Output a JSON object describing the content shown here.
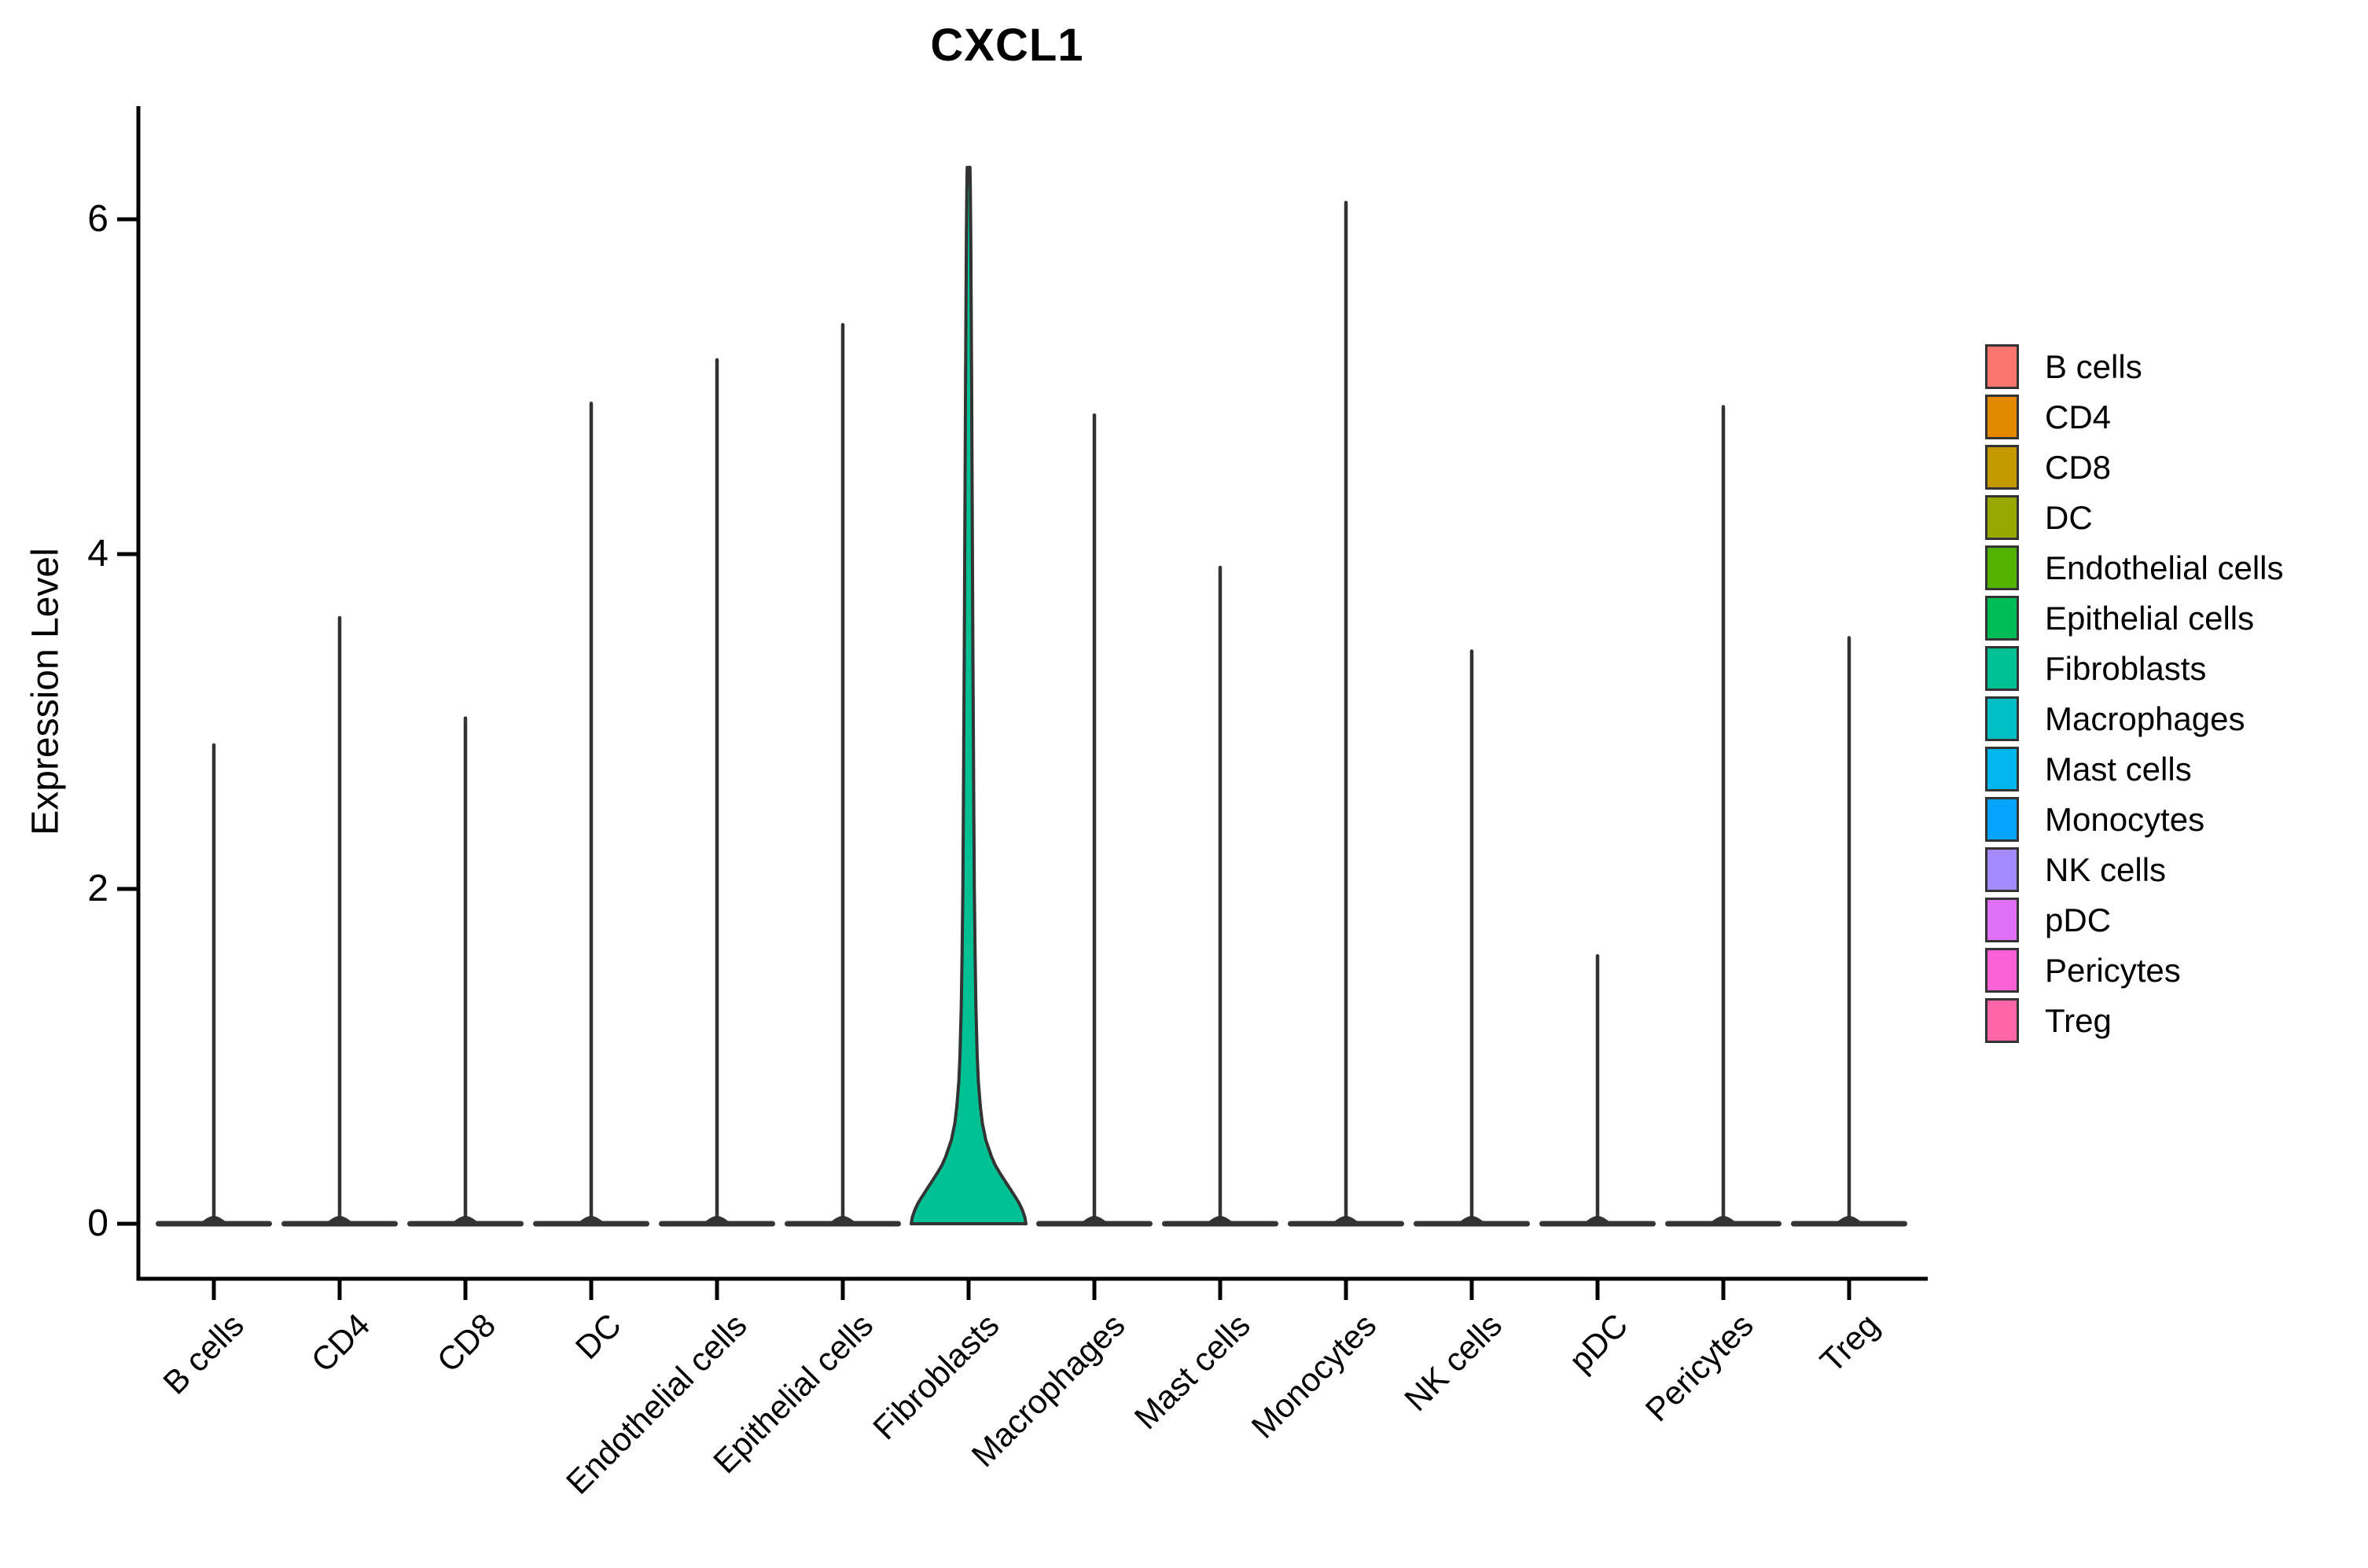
{
  "title": "CXCL1",
  "chart_data": {
    "type": "violin",
    "title": "CXCL1",
    "xlabel": "",
    "ylabel": "Expression Level",
    "ylim": [
      0,
      6.7
    ],
    "y_ticks": [
      6,
      4,
      2,
      0
    ],
    "grid": false,
    "legend_position": "right",
    "categories": [
      "B cells",
      "CD4",
      "CD8",
      "DC",
      "Endothelial cells",
      "Epithelial cells",
      "Fibroblasts",
      "Macrophages",
      "Mast cells",
      "Monocytes",
      "NK cells",
      "pDC",
      "Pericytes",
      "Treg"
    ],
    "violins": [
      {
        "label": "B cells",
        "color": "#F8766D",
        "max_expression": 2.86,
        "collapsed": true
      },
      {
        "label": "CD4",
        "color": "#E38900",
        "max_expression": 3.62,
        "collapsed": true
      },
      {
        "label": "CD8",
        "color": "#C49A00",
        "max_expression": 3.02,
        "collapsed": true
      },
      {
        "label": "DC",
        "color": "#99A800",
        "max_expression": 4.9,
        "collapsed": true
      },
      {
        "label": "Endothelial cells",
        "color": "#53B400",
        "max_expression": 5.16,
        "collapsed": true
      },
      {
        "label": "Epithelial cells",
        "color": "#00BC56",
        "max_expression": 5.37,
        "collapsed": true
      },
      {
        "label": "Fibroblasts",
        "color": "#00C094",
        "max_expression": 6.31,
        "collapsed": false
      },
      {
        "label": "Macrophages",
        "color": "#00BFC4",
        "max_expression": 4.83,
        "collapsed": true
      },
      {
        "label": "Mast cells",
        "color": "#00B6EB",
        "max_expression": 3.92,
        "collapsed": true
      },
      {
        "label": "Monocytes",
        "color": "#06A4FF",
        "max_expression": 6.1,
        "collapsed": true
      },
      {
        "label": "NK cells",
        "color": "#A58AFF",
        "max_expression": 3.42,
        "collapsed": true
      },
      {
        "label": "pDC",
        "color": "#DF70F8",
        "max_expression": 1.6,
        "collapsed": true
      },
      {
        "label": "Pericytes",
        "color": "#FB61D7",
        "max_expression": 4.88,
        "collapsed": true
      },
      {
        "label": "Treg",
        "color": "#FF66A8",
        "max_expression": 3.5,
        "collapsed": true
      }
    ],
    "fibroblast_density_profile": [
      [
        0.0,
        1.0
      ],
      [
        0.04,
        0.98
      ],
      [
        0.08,
        0.94
      ],
      [
        0.12,
        0.885
      ],
      [
        0.16,
        0.815
      ],
      [
        0.2,
        0.74
      ],
      [
        0.25,
        0.645
      ],
      [
        0.3,
        0.55
      ],
      [
        0.35,
        0.465
      ],
      [
        0.4,
        0.4
      ],
      [
        0.5,
        0.3
      ],
      [
        0.6,
        0.24
      ],
      [
        0.7,
        0.205
      ],
      [
        0.85,
        0.17
      ],
      [
        1.0,
        0.15
      ],
      [
        1.3,
        0.127
      ],
      [
        1.6,
        0.114
      ],
      [
        2.0,
        0.1
      ],
      [
        2.5,
        0.09
      ],
      [
        3.0,
        0.082
      ],
      [
        3.5,
        0.074
      ],
      [
        4.0,
        0.067
      ],
      [
        4.5,
        0.06
      ],
      [
        5.0,
        0.053
      ],
      [
        5.5,
        0.045
      ],
      [
        5.9,
        0.038
      ],
      [
        6.15,
        0.032
      ],
      [
        6.31,
        0.025
      ]
    ]
  },
  "legend": {
    "items": [
      {
        "label": "B cells",
        "color": "#F8766D"
      },
      {
        "label": "CD4",
        "color": "#E38900"
      },
      {
        "label": "CD8",
        "color": "#C49A00"
      },
      {
        "label": "DC",
        "color": "#99A800"
      },
      {
        "label": "Endothelial cells",
        "color": "#53B400"
      },
      {
        "label": "Epithelial cells",
        "color": "#00BC56"
      },
      {
        "label": "Fibroblasts",
        "color": "#00C094"
      },
      {
        "label": "Macrophages",
        "color": "#00BFC4"
      },
      {
        "label": "Mast cells",
        "color": "#00B6EB"
      },
      {
        "label": "Monocytes",
        "color": "#06A4FF"
      },
      {
        "label": "NK cells",
        "color": "#A58AFF"
      },
      {
        "label": "pDC",
        "color": "#DF70F8"
      },
      {
        "label": "Pericytes",
        "color": "#FB61D7"
      },
      {
        "label": "Treg",
        "color": "#FF66A8"
      }
    ]
  }
}
